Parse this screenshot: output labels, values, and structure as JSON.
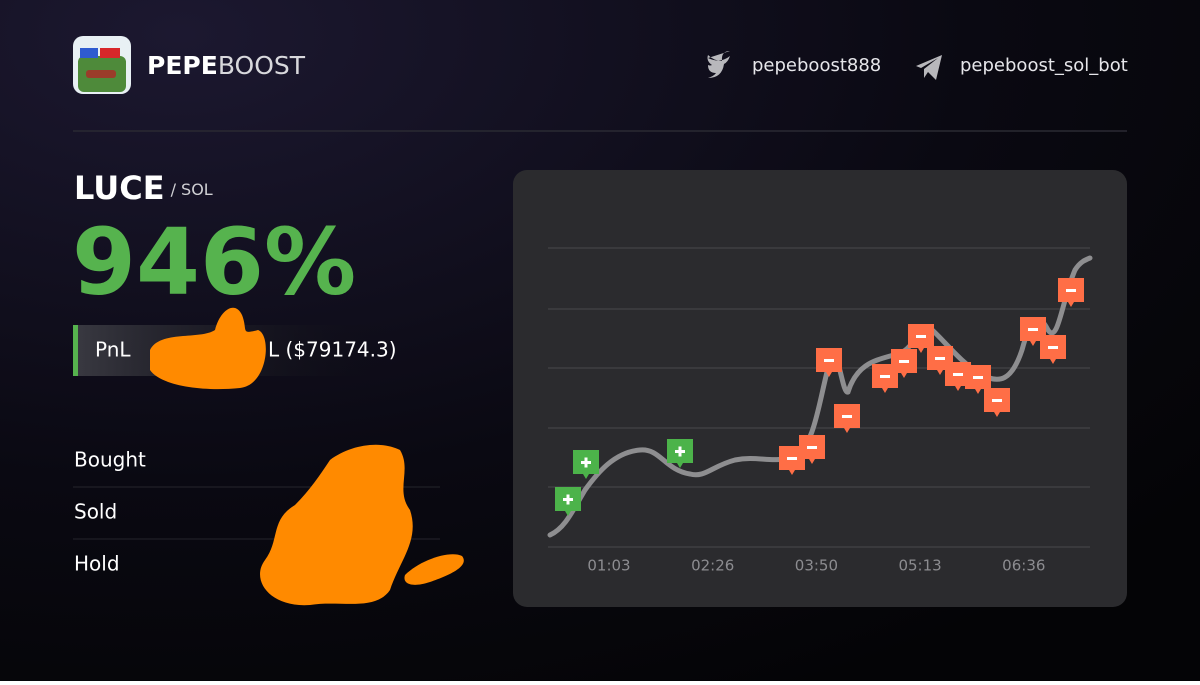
{
  "header": {
    "brand_bold": "PEPE",
    "brand_light": "BOOST",
    "twitter": "pepeboost888",
    "telegram": "pepeboost_sol_bot"
  },
  "pair": {
    "token": "LUCE",
    "quote": "/ SOL"
  },
  "pnl_percent": "946%",
  "pnl": {
    "label": "PnL",
    "value": "L ($79174.3)"
  },
  "stats": {
    "rows": [
      "Bought",
      "Sold",
      "Hold"
    ]
  },
  "chart": {
    "x_labels": [
      "01:03",
      "02:26",
      "03:50",
      "05:13",
      "06:36"
    ]
  }
}
